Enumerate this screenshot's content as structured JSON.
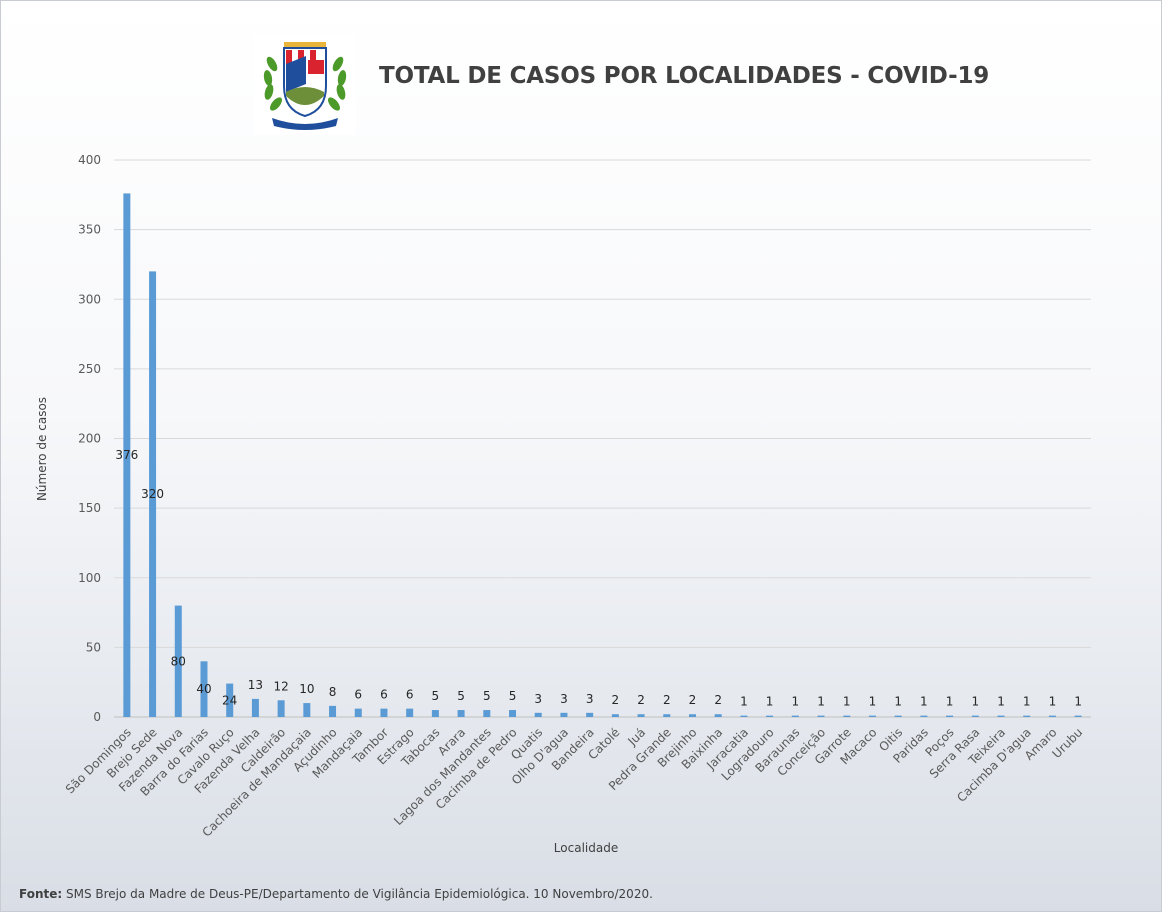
{
  "chart_data": {
    "type": "bar",
    "title": "TOTAL DE CASOS POR LOCALIDADES - COVID-19",
    "xlabel": "Localidade",
    "ylabel": "Número de casos",
    "ylim": [
      0,
      400
    ],
    "yticks": [
      0,
      50,
      100,
      150,
      200,
      250,
      300,
      350,
      400
    ],
    "grid": true,
    "legend": "none",
    "bar_color": "#5B9BD5",
    "categories": [
      "São Domingos",
      "Brejo Sede",
      "Fazenda Nova",
      "Barra do Farias",
      "Cavalo Ruço",
      "Fazenda Velha",
      "Caldeirão",
      "Cachoeira de Mandaçaia",
      "Açudinho",
      "Mandaçaia",
      "Tambor",
      "Estrago",
      "Tabocas",
      "Arara",
      "Lagoa dos Mandantes",
      "Cacimba de Pedro",
      "Quatis",
      "Olho D'agua",
      "Bandeira",
      "Catolé",
      "Juá",
      "Pedra Grande",
      "Brejinho",
      "Baixinha",
      "Jaracatia",
      "Logradouro",
      "Baraunas",
      "Conceição",
      "Garrote",
      "Macaco",
      "Oitis",
      "Paridas",
      "Poços",
      "Serra Rasa",
      "Teixeira",
      "Cacimba D'agua",
      "Amaro",
      "Urubu"
    ],
    "values": [
      376,
      320,
      80,
      40,
      24,
      13,
      12,
      10,
      8,
      6,
      6,
      6,
      5,
      5,
      5,
      5,
      3,
      3,
      3,
      2,
      2,
      2,
      2,
      2,
      1,
      1,
      1,
      1,
      1,
      1,
      1,
      1,
      1,
      1,
      1,
      1,
      1,
      1
    ]
  },
  "footer": {
    "label": "Fonte:",
    "text": " SMS Brejo da Madre de Deus-PE/Departamento de Vigilância Epidemiológica. 10 Novembro/2020."
  },
  "logo": {
    "icon": "municipal-coat-of-arms-icon",
    "colors": {
      "red": "#D9232E",
      "blue": "#1F4E9C",
      "green": "#4C9A2A",
      "gold": "#E8B53A"
    }
  }
}
